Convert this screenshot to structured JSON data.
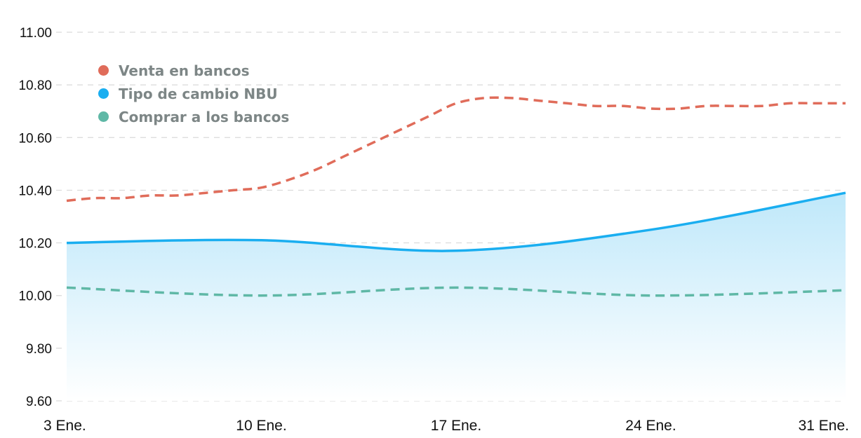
{
  "chart_data": {
    "type": "line",
    "title": "",
    "xlabel": "",
    "ylabel": "",
    "x": [
      "3 Ene.",
      "10 Ene.",
      "17 Ene.",
      "24 Ene.",
      "31 Ene."
    ],
    "ylim": [
      9.6,
      11.0
    ],
    "yticks": [
      "9.60",
      "9.80",
      "10.00",
      "10.20",
      "10.40",
      "10.60",
      "10.80",
      "11.00"
    ],
    "grid": true,
    "legend_position": "top-left",
    "series": [
      {
        "name": "Venta en bancos",
        "color": "#e06c5a",
        "style": "dashed",
        "x": [
          0,
          1,
          2,
          3,
          4,
          5,
          6,
          7,
          8,
          9,
          10,
          11,
          12,
          13,
          14,
          15,
          16,
          17,
          18,
          19,
          20,
          21,
          22,
          23,
          24,
          25,
          26,
          27,
          28
        ],
        "values": [
          10.36,
          10.37,
          10.37,
          10.38,
          10.38,
          10.39,
          10.4,
          10.41,
          10.44,
          10.48,
          10.53,
          10.58,
          10.63,
          10.68,
          10.73,
          10.75,
          10.75,
          10.74,
          10.73,
          10.72,
          10.72,
          10.71,
          10.71,
          10.72,
          10.72,
          10.72,
          10.73,
          10.73,
          10.73
        ]
      },
      {
        "name": "Tipo de cambio NBU",
        "color": "#1aaef0",
        "style": "solid",
        "fill": true,
        "x": [
          0,
          7,
          14,
          21,
          28
        ],
        "values": [
          10.2,
          10.21,
          10.17,
          10.25,
          10.39
        ]
      },
      {
        "name": "Comprar a los bancos",
        "color": "#5fb8a6",
        "style": "dashed",
        "x": [
          0,
          7,
          14,
          21,
          28
        ],
        "values": [
          10.03,
          10.0,
          10.03,
          10.0,
          10.02
        ]
      }
    ]
  }
}
